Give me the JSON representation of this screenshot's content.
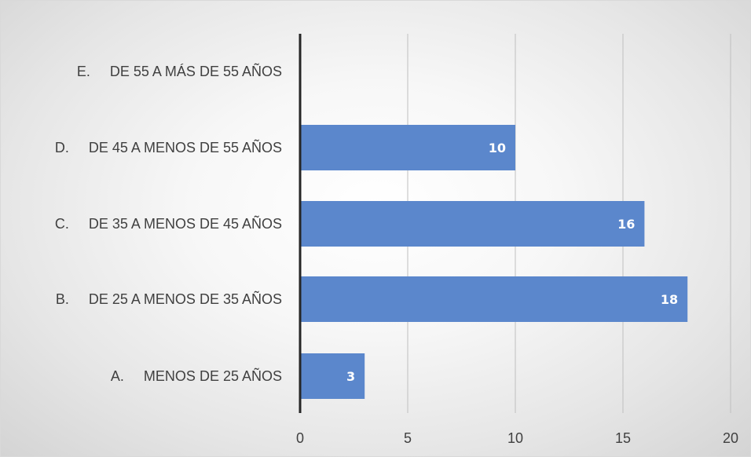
{
  "chart_data": {
    "type": "bar",
    "orientation": "horizontal",
    "categories": [
      "A.     MENOS DE 25 AÑOS",
      "B.     DE 25 A MENOS DE 35 AÑOS",
      "C.     DE 35 A MENOS DE 45 AÑOS",
      "D.     DE 45 A MENOS DE 55 AÑOS",
      "E.     DE 55 A MÁS DE 55 AÑOS"
    ],
    "values": [
      3,
      18,
      16,
      10,
      0
    ],
    "data_labels": [
      "3",
      "18",
      "16",
      "10",
      ""
    ],
    "title": "",
    "xlabel": "",
    "ylabel": "",
    "xlim": [
      0,
      20
    ],
    "xticks": [
      0,
      5,
      10,
      15,
      20
    ],
    "grid": true,
    "legend": "none",
    "bar_color": "#5b87cc",
    "gridline_color": "#bfbfbf",
    "axis_color": "#262626"
  }
}
